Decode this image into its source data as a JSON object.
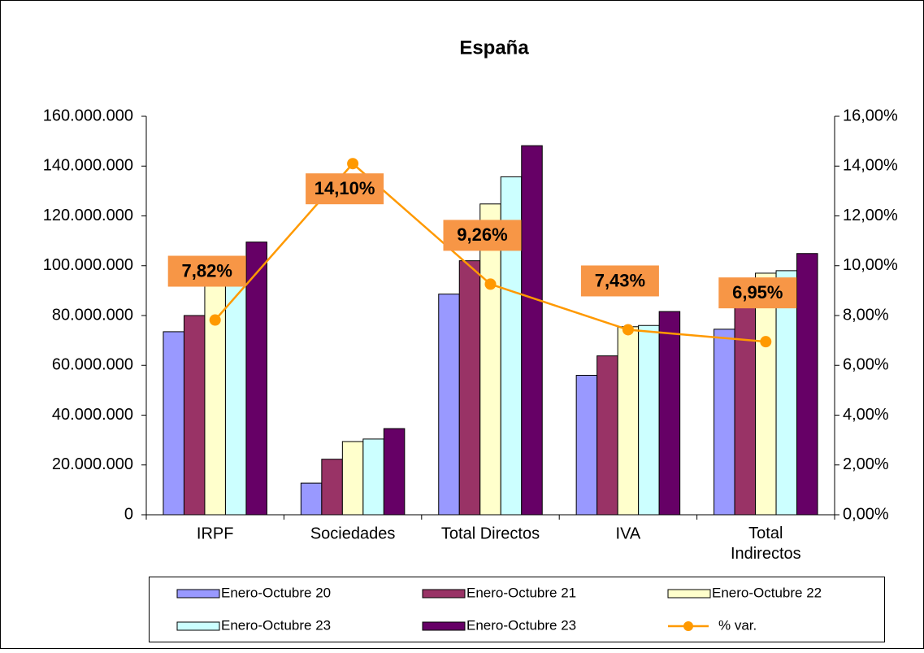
{
  "chart_data": {
    "type": "bar",
    "title": "España",
    "categories": [
      "IRPF",
      "Sociedades",
      "Total Directos",
      "IVA",
      "Total Indirectos"
    ],
    "series": [
      {
        "name": "Enero-Octubre 20",
        "color": "#9999ff",
        "values": [
          73500000,
          12700000,
          88600000,
          56000000,
          74500000
        ]
      },
      {
        "name": "Enero-Octubre 21",
        "color": "#993366",
        "values": [
          80000000,
          22300000,
          102000000,
          63800000,
          84200000
        ]
      },
      {
        "name": "Enero-Octubre 22",
        "color": "#ffffcc",
        "values": [
          96000000,
          29400000,
          124800000,
          75500000,
          97000000
        ]
      },
      {
        "name": "Enero-Octubre 23",
        "color": "#ccffff",
        "values": [
          102000000,
          30400000,
          135700000,
          76000000,
          98000000
        ]
      },
      {
        "name": "Enero-Octubre 23",
        "color": "#660066",
        "values": [
          109500000,
          34600000,
          148200000,
          81600000,
          104900000
        ]
      },
      {
        "name": "% var.",
        "color": "#ff9900",
        "axis": "y2",
        "type": "line",
        "values": [
          7.82,
          14.1,
          9.26,
          7.43,
          6.95
        ],
        "value_labels": [
          "7,82%",
          "14,10%",
          "9,26%",
          "7,43%",
          "6,95%"
        ]
      }
    ],
    "ylim": [
      0,
      160000000
    ],
    "yticks": [
      0,
      {
        "value": 20000000,
        "label": "20.000.000"
      },
      {
        "value": 40000000,
        "label": "40.000.000"
      },
      {
        "value": 60000000,
        "label": "60.000.000"
      },
      {
        "value": 80000000,
        "label": "80.000.000"
      },
      {
        "value": 100000000,
        "label": "100.000.000"
      },
      {
        "value": 120000000,
        "label": "120.000.000"
      },
      {
        "value": 140000000,
        "label": "140.000.000"
      },
      {
        "value": 160000000,
        "label": "160.000.000"
      }
    ],
    "y2lim": [
      0,
      16
    ],
    "y2ticks": [
      {
        "value": 0,
        "label": "0,00%"
      },
      {
        "value": 2,
        "label": "2,00%"
      },
      {
        "value": 4,
        "label": "4,00%"
      },
      {
        "value": 6,
        "label": "6,00%"
      },
      {
        "value": 8,
        "label": "8,00%"
      },
      {
        "value": 10,
        "label": "10,00%"
      },
      {
        "value": 12,
        "label": "12,00%"
      },
      {
        "value": 14,
        "label": "14,00%"
      },
      {
        "value": 16,
        "label": "16,00%"
      }
    ],
    "legend": "bottom"
  }
}
